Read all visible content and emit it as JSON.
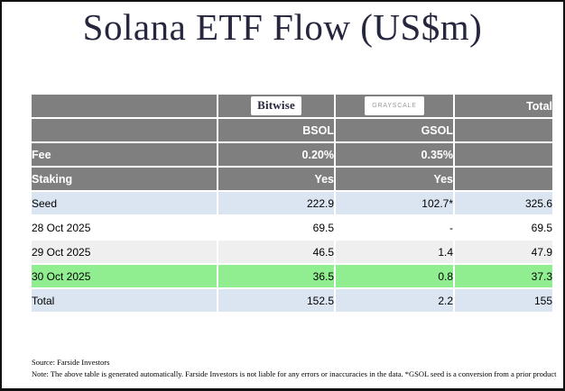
{
  "title": "Solana ETF Flow (US$m)",
  "colors": {
    "title": "#26263e",
    "header_bg": "#7f7f7f",
    "header_text": "#ffffff",
    "body_text": "#000000",
    "row_blue": "#dbe5f1",
    "row_white": "#ffffff",
    "row_gray": "#efefef",
    "row_green": "#90ee90",
    "bitwise_logo_text": "#26263e",
    "grayscale_logo_text": "#9b9b9b"
  },
  "table": {
    "providers": {
      "bitwise": "Bitwise",
      "grayscale": "GRAYSCALE"
    },
    "header": {
      "total_label": "Total",
      "bsol_ticker": "BSOL",
      "gsol_ticker": "GSOL",
      "fee_label": "Fee",
      "fee_bsol": "0.20%",
      "fee_gsol": "0.35%",
      "staking_label": "Staking",
      "staking_bsol": "Yes",
      "staking_gsol": "Yes"
    },
    "rows": [
      {
        "label": "Seed",
        "bsol": "222.9",
        "gsol": "102.7*",
        "total": "325.6",
        "style": "blue"
      },
      {
        "label": "28 Oct 2025",
        "bsol": "69.5",
        "gsol": "-",
        "total": "69.5",
        "style": "white"
      },
      {
        "label": "29 Oct 2025",
        "bsol": "46.5",
        "gsol": "1.4",
        "total": "47.9",
        "style": "gray"
      },
      {
        "label": "30 Oct 2025",
        "bsol": "36.5",
        "gsol": "0.8",
        "total": "37.3",
        "style": "green"
      },
      {
        "label": "Total",
        "bsol": "152.5",
        "gsol": "2.2",
        "total": "155",
        "style": "blue"
      }
    ]
  },
  "footer": {
    "source": "Source: Farside Investors",
    "note": "Note: The above table is generated automatically. Farside Investors is not liable for any errors or inaccuracies in the data. *GSOL seed is a conversion from a prior product"
  }
}
